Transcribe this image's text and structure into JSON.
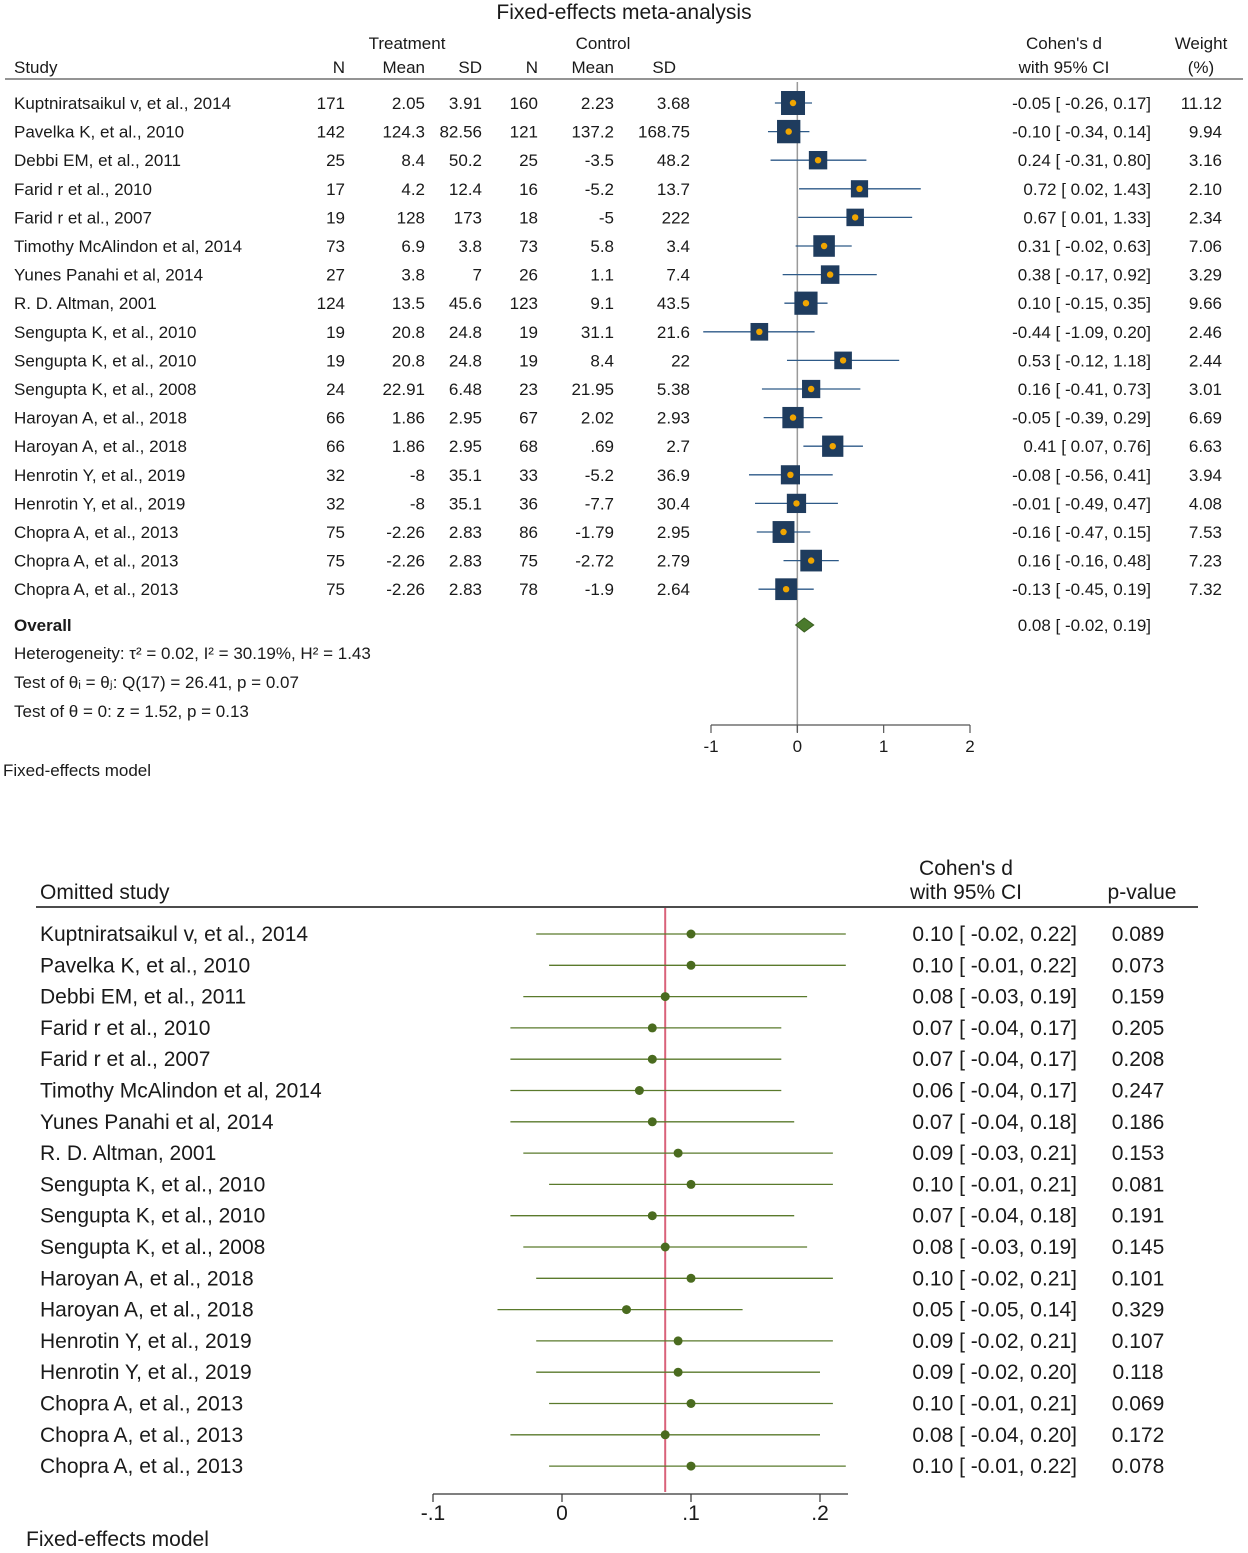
{
  "chart_data": [
    {
      "type": "forest",
      "title": "Fixed-effects meta-analysis",
      "group_headers": {
        "treatment": "Treatment",
        "control": "Control"
      },
      "columns": {
        "study": "Study",
        "n": "N",
        "mean": "Mean",
        "sd": "SD",
        "effect_line1": "Cohen's d",
        "effect_line2": "with 95% CI",
        "weight_line1": "Weight",
        "weight_line2": "(%)"
      },
      "studies": [
        {
          "label": "Kuptniratsaikul v, et al., 2014",
          "t_n": "171",
          "t_mean": "2.05",
          "t_sd": "3.91",
          "c_n": "160",
          "c_mean": "2.23",
          "c_sd": "3.68",
          "d": -0.05,
          "lo": -0.26,
          "hi": 0.17,
          "ci_text": "-0.05 [ -0.26,  0.17]",
          "weight": 11.12,
          "weight_text": "11.12"
        },
        {
          "label": "Pavelka K, et al., 2010",
          "t_n": "142",
          "t_mean": "124.3",
          "t_sd": "82.56",
          "c_n": "121",
          "c_mean": "137.2",
          "c_sd": "168.75",
          "d": -0.1,
          "lo": -0.34,
          "hi": 0.14,
          "ci_text": "-0.10 [ -0.34,  0.14]",
          "weight": 9.94,
          "weight_text": "9.94"
        },
        {
          "label": "Debbi EM, et al., 2011",
          "t_n": "25",
          "t_mean": "8.4",
          "t_sd": "50.2",
          "c_n": "25",
          "c_mean": "-3.5",
          "c_sd": "48.2",
          "d": 0.24,
          "lo": -0.31,
          "hi": 0.8,
          "ci_text": "0.24 [ -0.31,  0.80]",
          "weight": 3.16,
          "weight_text": "3.16"
        },
        {
          "label": "Farid r et al., 2010",
          "t_n": "17",
          "t_mean": "4.2",
          "t_sd": "12.4",
          "c_n": "16",
          "c_mean": "-5.2",
          "c_sd": "13.7",
          "d": 0.72,
          "lo": 0.02,
          "hi": 1.43,
          "ci_text": "0.72 [  0.02,  1.43]",
          "weight": 2.1,
          "weight_text": "2.10"
        },
        {
          "label": "Farid r et al., 2007",
          "t_n": "19",
          "t_mean": "128",
          "t_sd": "173",
          "c_n": "18",
          "c_mean": "-5",
          "c_sd": "222",
          "d": 0.67,
          "lo": 0.01,
          "hi": 1.33,
          "ci_text": "0.67 [  0.01,  1.33]",
          "weight": 2.34,
          "weight_text": "2.34"
        },
        {
          "label": "Timothy McAlindon et al, 2014",
          "t_n": "73",
          "t_mean": "6.9",
          "t_sd": "3.8",
          "c_n": "73",
          "c_mean": "5.8",
          "c_sd": "3.4",
          "d": 0.31,
          "lo": -0.02,
          "hi": 0.63,
          "ci_text": "0.31 [ -0.02,  0.63]",
          "weight": 7.06,
          "weight_text": "7.06"
        },
        {
          "label": "Yunes Panahi et al, 2014",
          "t_n": "27",
          "t_mean": "3.8",
          "t_sd": "7",
          "c_n": "26",
          "c_mean": "1.1",
          "c_sd": "7.4",
          "d": 0.38,
          "lo": -0.17,
          "hi": 0.92,
          "ci_text": "0.38 [ -0.17,  0.92]",
          "weight": 3.29,
          "weight_text": "3.29"
        },
        {
          "label": "R. D. Altman, 2001",
          "t_n": "124",
          "t_mean": "13.5",
          "t_sd": "45.6",
          "c_n": "123",
          "c_mean": "9.1",
          "c_sd": "43.5",
          "d": 0.1,
          "lo": -0.15,
          "hi": 0.35,
          "ci_text": "0.10 [ -0.15,  0.35]",
          "weight": 9.66,
          "weight_text": "9.66"
        },
        {
          "label": "Sengupta K, et al., 2010",
          "t_n": "19",
          "t_mean": "20.8",
          "t_sd": "24.8",
          "c_n": "19",
          "c_mean": "31.1",
          "c_sd": "21.6",
          "d": -0.44,
          "lo": -1.09,
          "hi": 0.2,
          "ci_text": "-0.44 [ -1.09,  0.20]",
          "weight": 2.46,
          "weight_text": "2.46"
        },
        {
          "label": "Sengupta K, et al., 2010",
          "t_n": "19",
          "t_mean": "20.8",
          "t_sd": "24.8",
          "c_n": "19",
          "c_mean": "8.4",
          "c_sd": "22",
          "d": 0.53,
          "lo": -0.12,
          "hi": 1.18,
          "ci_text": "0.53 [ -0.12,  1.18]",
          "weight": 2.44,
          "weight_text": "2.44"
        },
        {
          "label": "Sengupta K, et al., 2008",
          "t_n": "24",
          "t_mean": "22.91",
          "t_sd": "6.48",
          "c_n": "23",
          "c_mean": "21.95",
          "c_sd": "5.38",
          "d": 0.16,
          "lo": -0.41,
          "hi": 0.73,
          "ci_text": "0.16 [ -0.41,  0.73]",
          "weight": 3.01,
          "weight_text": "3.01"
        },
        {
          "label": "Haroyan A, et al., 2018",
          "t_n": "66",
          "t_mean": "1.86",
          "t_sd": "2.95",
          "c_n": "67",
          "c_mean": "2.02",
          "c_sd": "2.93",
          "d": -0.05,
          "lo": -0.39,
          "hi": 0.29,
          "ci_text": "-0.05 [ -0.39,  0.29]",
          "weight": 6.69,
          "weight_text": "6.69"
        },
        {
          "label": "Haroyan A, et al., 2018",
          "t_n": "66",
          "t_mean": "1.86",
          "t_sd": "2.95",
          "c_n": "68",
          "c_mean": ".69",
          "c_sd": "2.7",
          "d": 0.41,
          "lo": 0.07,
          "hi": 0.76,
          "ci_text": "0.41 [  0.07,  0.76]",
          "weight": 6.63,
          "weight_text": "6.63"
        },
        {
          "label": "Henrotin Y, et al., 2019",
          "t_n": "32",
          "t_mean": "-8",
          "t_sd": "35.1",
          "c_n": "33",
          "c_mean": "-5.2",
          "c_sd": "36.9",
          "d": -0.08,
          "lo": -0.56,
          "hi": 0.41,
          "ci_text": "-0.08 [ -0.56,  0.41]",
          "weight": 3.94,
          "weight_text": "3.94"
        },
        {
          "label": "Henrotin Y, et al., 2019",
          "t_n": "32",
          "t_mean": "-8",
          "t_sd": "35.1",
          "c_n": "36",
          "c_mean": "-7.7",
          "c_sd": "30.4",
          "d": -0.01,
          "lo": -0.49,
          "hi": 0.47,
          "ci_text": "-0.01 [ -0.49,  0.47]",
          "weight": 4.08,
          "weight_text": "4.08"
        },
        {
          "label": "Chopra A, et al., 2013",
          "t_n": "75",
          "t_mean": "-2.26",
          "t_sd": "2.83",
          "c_n": "86",
          "c_mean": "-1.79",
          "c_sd": "2.95",
          "d": -0.16,
          "lo": -0.47,
          "hi": 0.15,
          "ci_text": "-0.16 [ -0.47,  0.15]",
          "weight": 7.53,
          "weight_text": "7.53"
        },
        {
          "label": "Chopra A, et al., 2013",
          "t_n": "75",
          "t_mean": "-2.26",
          "t_sd": "2.83",
          "c_n": "75",
          "c_mean": "-2.72",
          "c_sd": "2.79",
          "d": 0.16,
          "lo": -0.16,
          "hi": 0.48,
          "ci_text": "0.16 [ -0.16,  0.48]",
          "weight": 7.23,
          "weight_text": "7.23"
        },
        {
          "label": "Chopra A, et al., 2013",
          "t_n": "75",
          "t_mean": "-2.26",
          "t_sd": "2.83",
          "c_n": "78",
          "c_mean": "-1.9",
          "c_sd": "2.64",
          "d": -0.13,
          "lo": -0.45,
          "hi": 0.19,
          "ci_text": "-0.13 [ -0.45,  0.19]",
          "weight": 7.32,
          "weight_text": "7.32"
        }
      ],
      "overall": {
        "label": "Overall",
        "d": 0.08,
        "lo": -0.02,
        "hi": 0.19,
        "ci_text": "0.08 [ -0.02,  0.19]"
      },
      "stats": [
        "Heterogeneity: τ² = 0.02, I² = 30.19%, H² = 1.43",
        "Test of θᵢ = θⱼ: Q(17) = 26.41, p = 0.07",
        "Test of θ = 0: z = 1.52, p = 0.13"
      ],
      "x_ticks": [
        -1,
        0,
        1,
        2
      ],
      "x_tick_labels": [
        "-1",
        "0",
        "1",
        "2"
      ],
      "xlim": [
        -1,
        2
      ],
      "reference_line": 0,
      "footnote": "Fixed-effects model",
      "colors": {
        "box": "#1f3c5e",
        "marker": "#f0a500",
        "line": "#2e5a88",
        "diamond": "#4a7a2c",
        "axis": "#555555"
      }
    },
    {
      "type": "forest",
      "title": "",
      "columns": {
        "study": "Omitted study",
        "effect_line1": "Cohen's d",
        "effect_line2": "with 95% CI",
        "pvalue": "p-value"
      },
      "studies": [
        {
          "label": "Kuptniratsaikul v, et al., 2014",
          "d": 0.1,
          "lo": -0.02,
          "hi": 0.22,
          "ci_text": "0.10 [ -0.02,  0.22]",
          "p_text": "0.089"
        },
        {
          "label": "Pavelka K, et al., 2010",
          "d": 0.1,
          "lo": -0.01,
          "hi": 0.22,
          "ci_text": "0.10 [ -0.01,  0.22]",
          "p_text": "0.073"
        },
        {
          "label": "Debbi EM, et al., 2011",
          "d": 0.08,
          "lo": -0.03,
          "hi": 0.19,
          "ci_text": "0.08 [ -0.03,  0.19]",
          "p_text": "0.159"
        },
        {
          "label": "Farid r et al., 2010",
          "d": 0.07,
          "lo": -0.04,
          "hi": 0.17,
          "ci_text": "0.07 [ -0.04,  0.17]",
          "p_text": "0.205"
        },
        {
          "label": "Farid r et al., 2007",
          "d": 0.07,
          "lo": -0.04,
          "hi": 0.17,
          "ci_text": "0.07 [ -0.04,  0.17]",
          "p_text": "0.208"
        },
        {
          "label": "Timothy McAlindon et al, 2014",
          "d": 0.06,
          "lo": -0.04,
          "hi": 0.17,
          "ci_text": "0.06 [ -0.04,  0.17]",
          "p_text": "0.247"
        },
        {
          "label": "Yunes Panahi et al, 2014",
          "d": 0.07,
          "lo": -0.04,
          "hi": 0.18,
          "ci_text": "0.07 [ -0.04,  0.18]",
          "p_text": "0.186"
        },
        {
          "label": "R. D. Altman, 2001",
          "d": 0.09,
          "lo": -0.03,
          "hi": 0.21,
          "ci_text": "0.09 [ -0.03,  0.21]",
          "p_text": "0.153"
        },
        {
          "label": "Sengupta K, et al., 2010",
          "d": 0.1,
          "lo": -0.01,
          "hi": 0.21,
          "ci_text": "0.10 [ -0.01,  0.21]",
          "p_text": "0.081"
        },
        {
          "label": "Sengupta K, et al., 2010",
          "d": 0.07,
          "lo": -0.04,
          "hi": 0.18,
          "ci_text": "0.07 [ -0.04,  0.18]",
          "p_text": "0.191"
        },
        {
          "label": "Sengupta K, et al., 2008",
          "d": 0.08,
          "lo": -0.03,
          "hi": 0.19,
          "ci_text": "0.08 [ -0.03,  0.19]",
          "p_text": "0.145"
        },
        {
          "label": "Haroyan A, et al., 2018",
          "d": 0.1,
          "lo": -0.02,
          "hi": 0.21,
          "ci_text": "0.10 [ -0.02,  0.21]",
          "p_text": "0.101"
        },
        {
          "label": "Haroyan A, et al., 2018",
          "d": 0.05,
          "lo": -0.05,
          "hi": 0.14,
          "ci_text": "0.05 [ -0.05,  0.14]",
          "p_text": "0.329"
        },
        {
          "label": "Henrotin Y, et al., 2019",
          "d": 0.09,
          "lo": -0.02,
          "hi": 0.21,
          "ci_text": "0.09 [ -0.02,  0.21]",
          "p_text": "0.107"
        },
        {
          "label": "Henrotin Y, et al., 2019",
          "d": 0.09,
          "lo": -0.02,
          "hi": 0.2,
          "ci_text": "0.09 [ -0.02,  0.20]",
          "p_text": "0.118"
        },
        {
          "label": "Chopra A, et al., 2013",
          "d": 0.1,
          "lo": -0.01,
          "hi": 0.21,
          "ci_text": "0.10 [ -0.01,  0.21]",
          "p_text": "0.069"
        },
        {
          "label": "Chopra A, et al., 2013",
          "d": 0.08,
          "lo": -0.04,
          "hi": 0.2,
          "ci_text": "0.08 [ -0.04,  0.20]",
          "p_text": "0.172"
        },
        {
          "label": "Chopra A, et al., 2013",
          "d": 0.1,
          "lo": -0.01,
          "hi": 0.22,
          "ci_text": "0.10 [ -0.01,  0.22]",
          "p_text": "0.078"
        }
      ],
      "x_ticks": [
        -0.1,
        0,
        0.1,
        0.2
      ],
      "x_tick_labels": [
        "-.1",
        "0",
        ".1",
        ".2"
      ],
      "xlim": [
        -0.1,
        0.2
      ],
      "reference_line": 0.08,
      "footnote": "Fixed-effects model",
      "colors": {
        "marker": "#4a6b1f",
        "line": "#5a7a2c",
        "reference": "#d9627a",
        "axis": "#333333"
      }
    }
  ]
}
